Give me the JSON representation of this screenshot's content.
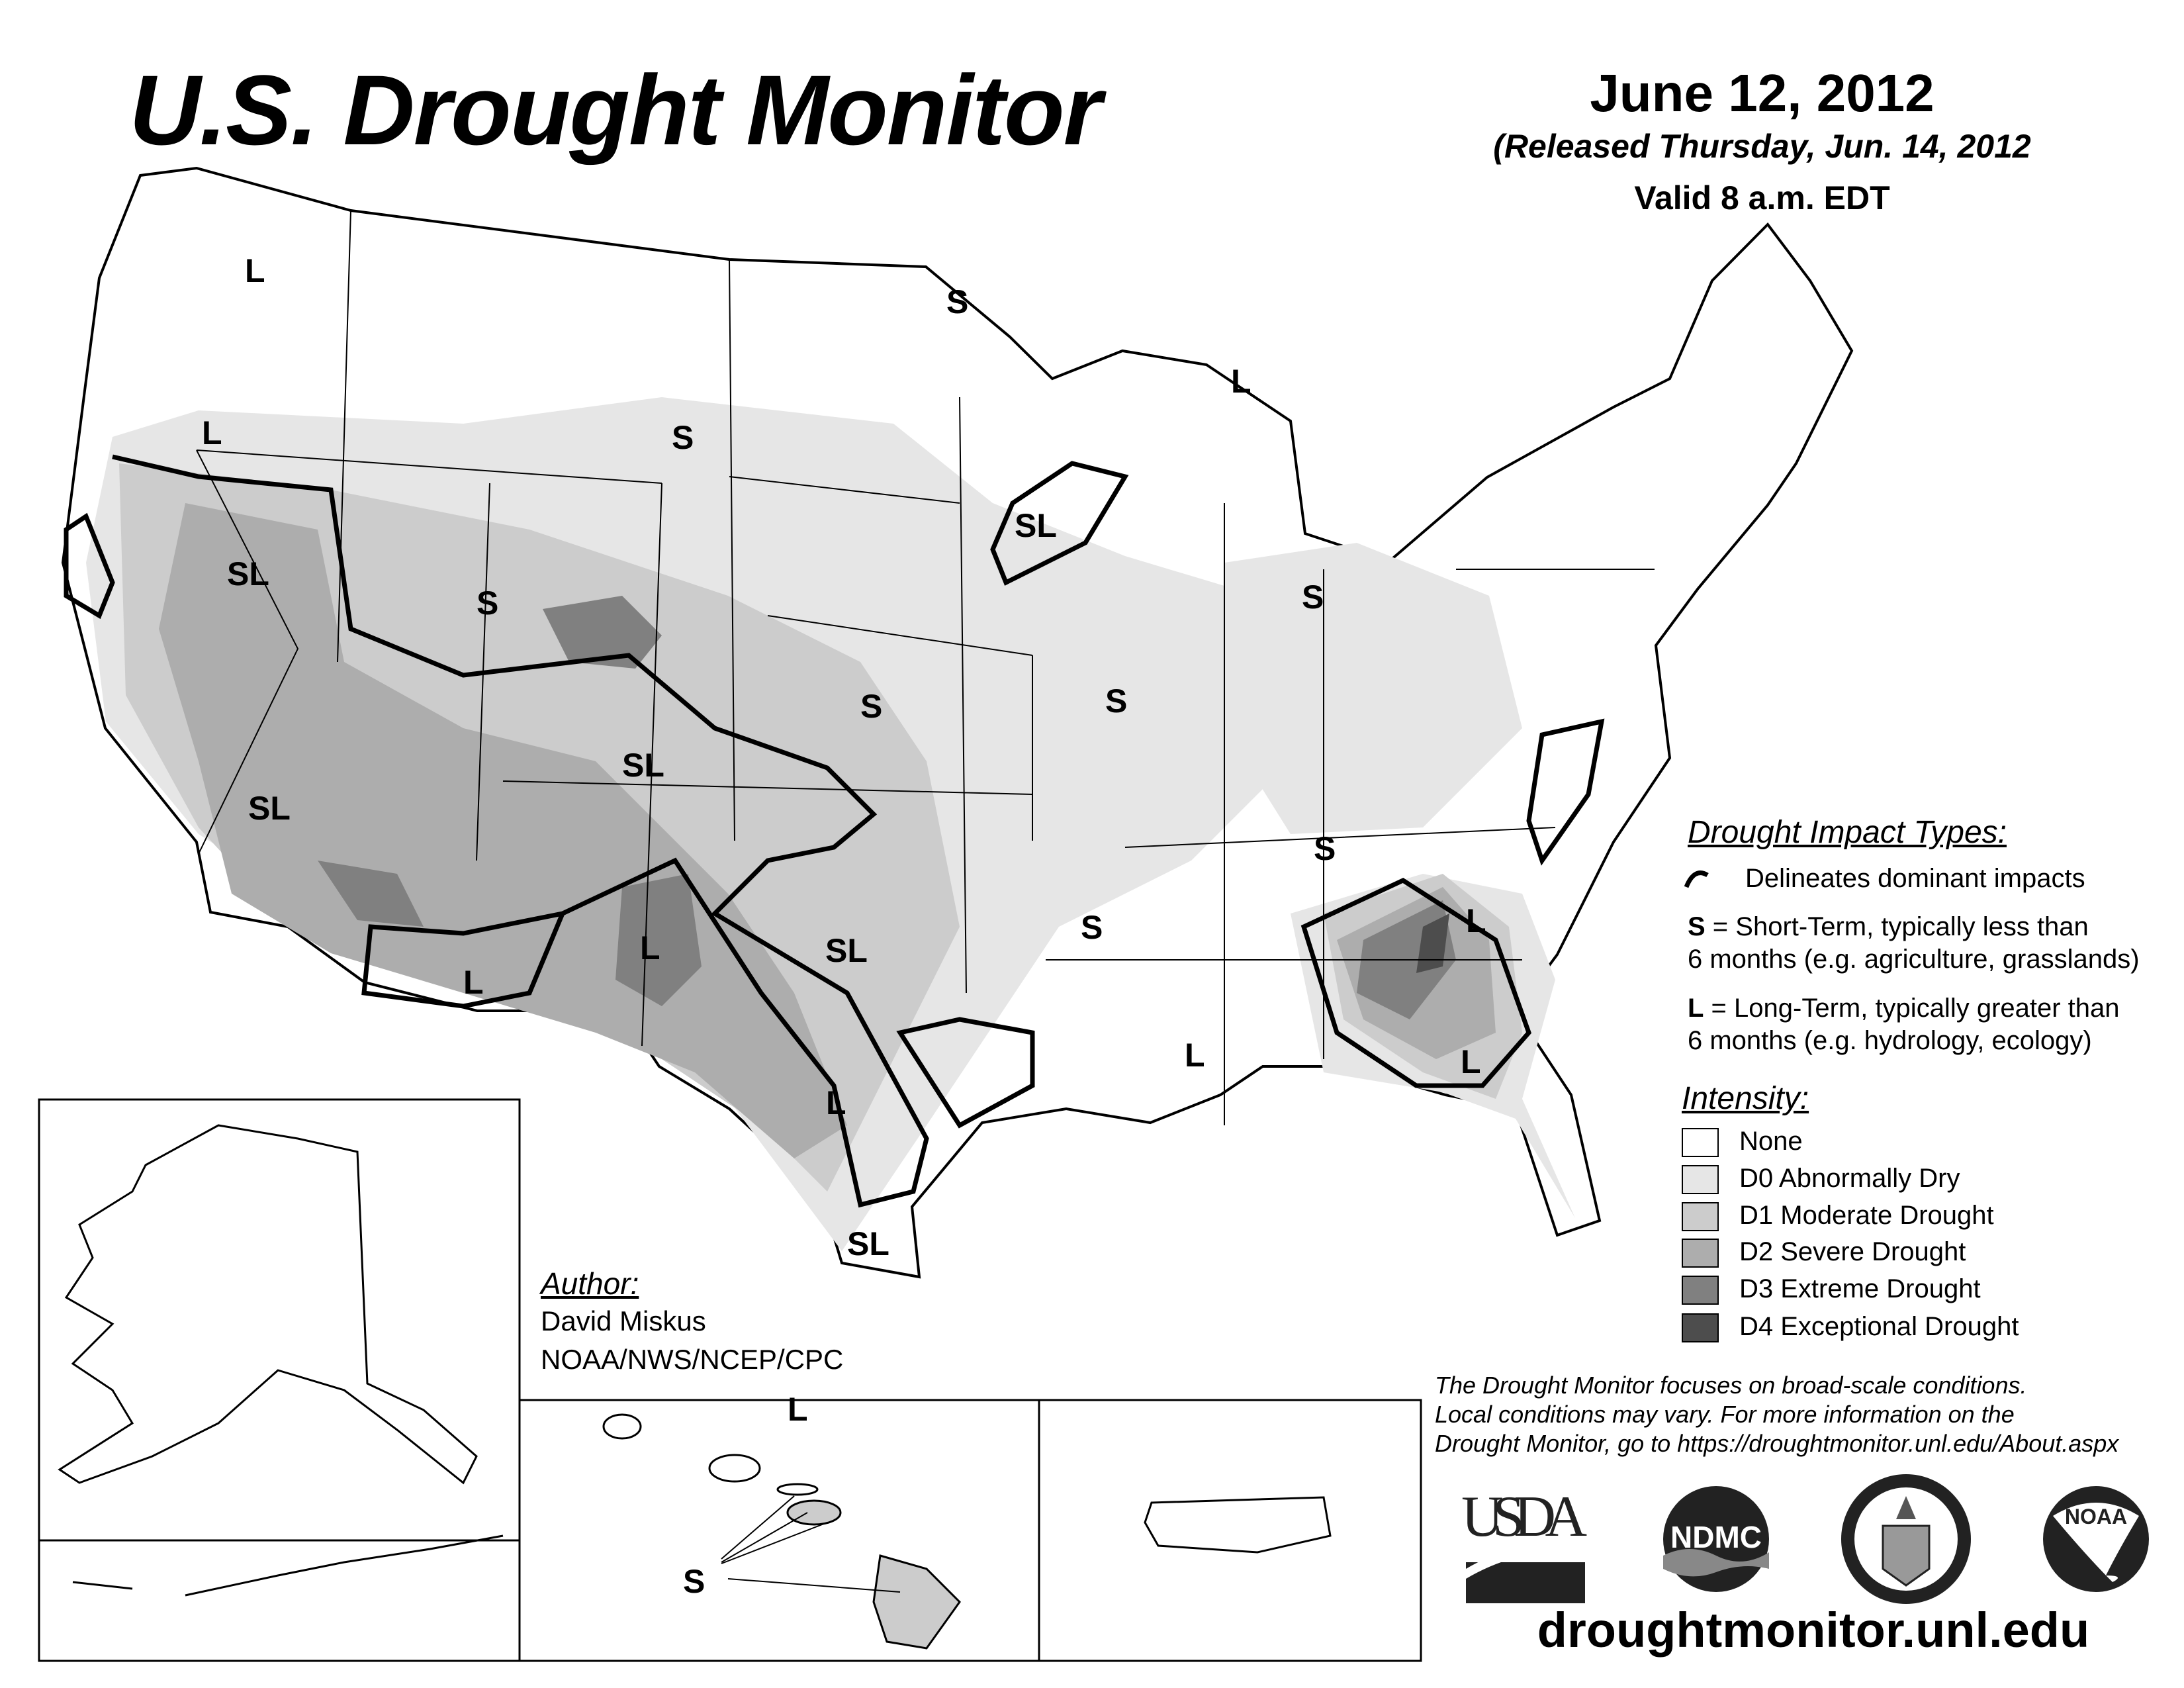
{
  "header": {
    "title": "U.S. Drought Monitor",
    "date": "June 12, 2012",
    "released": "(Released Thursday, Jun. 14, 2012",
    "valid": "Valid 8 a.m. EDT"
  },
  "legend": {
    "impact_heading": "Drought Impact Types:",
    "delineates": "Delineates dominant impacts",
    "short_term_key": "S",
    "short_term_line1": " = Short-Term, typically less than",
    "short_term_line2": "6 months (e.g. agriculture, grasslands)",
    "long_term_key": "L",
    "long_term_line1": " = Long-Term, typically greater than",
    "long_term_line2": "6 months (e.g. hydrology, ecology)",
    "intensity_heading": "Intensity:",
    "intensity": [
      {
        "label": "None",
        "color": "#ffffff"
      },
      {
        "label": "D0 Abnormally Dry",
        "color": "#e6e6e6"
      },
      {
        "label": "D1 Moderate Drought",
        "color": "#cccccc"
      },
      {
        "label": "D2 Severe Drought",
        "color": "#adadad"
      },
      {
        "label": "D3 Extreme Drought",
        "color": "#808080"
      },
      {
        "label": "D4 Exceptional Drought",
        "color": "#4d4d4d"
      }
    ]
  },
  "author": {
    "heading": "Author:",
    "name": "David Miskus",
    "org": "NOAA/NWS/NCEP/CPC"
  },
  "disclaimer": [
    "The Drought Monitor focuses on broad-scale conditions.",
    "Local conditions may vary. For more information on the",
    "Drought Monitor, go to https://droughtmonitor.unl.edu/About.aspx"
  ],
  "logos": {
    "usda": "USDA",
    "ndmc": "NDMC",
    "doc": "DEPARTMENT OF COMMERCE",
    "noaa": "NOAA"
  },
  "website": "droughtmonitor.unl.edu",
  "map": {
    "labels": [
      "L",
      "L",
      "SL",
      "S",
      "S",
      "S",
      "L",
      "SL",
      "S",
      "S",
      "S",
      "SL",
      "SL",
      "S",
      "S",
      "L",
      "SL",
      "L",
      "L",
      "L",
      "L",
      "L",
      "SL",
      "S",
      "L"
    ]
  }
}
